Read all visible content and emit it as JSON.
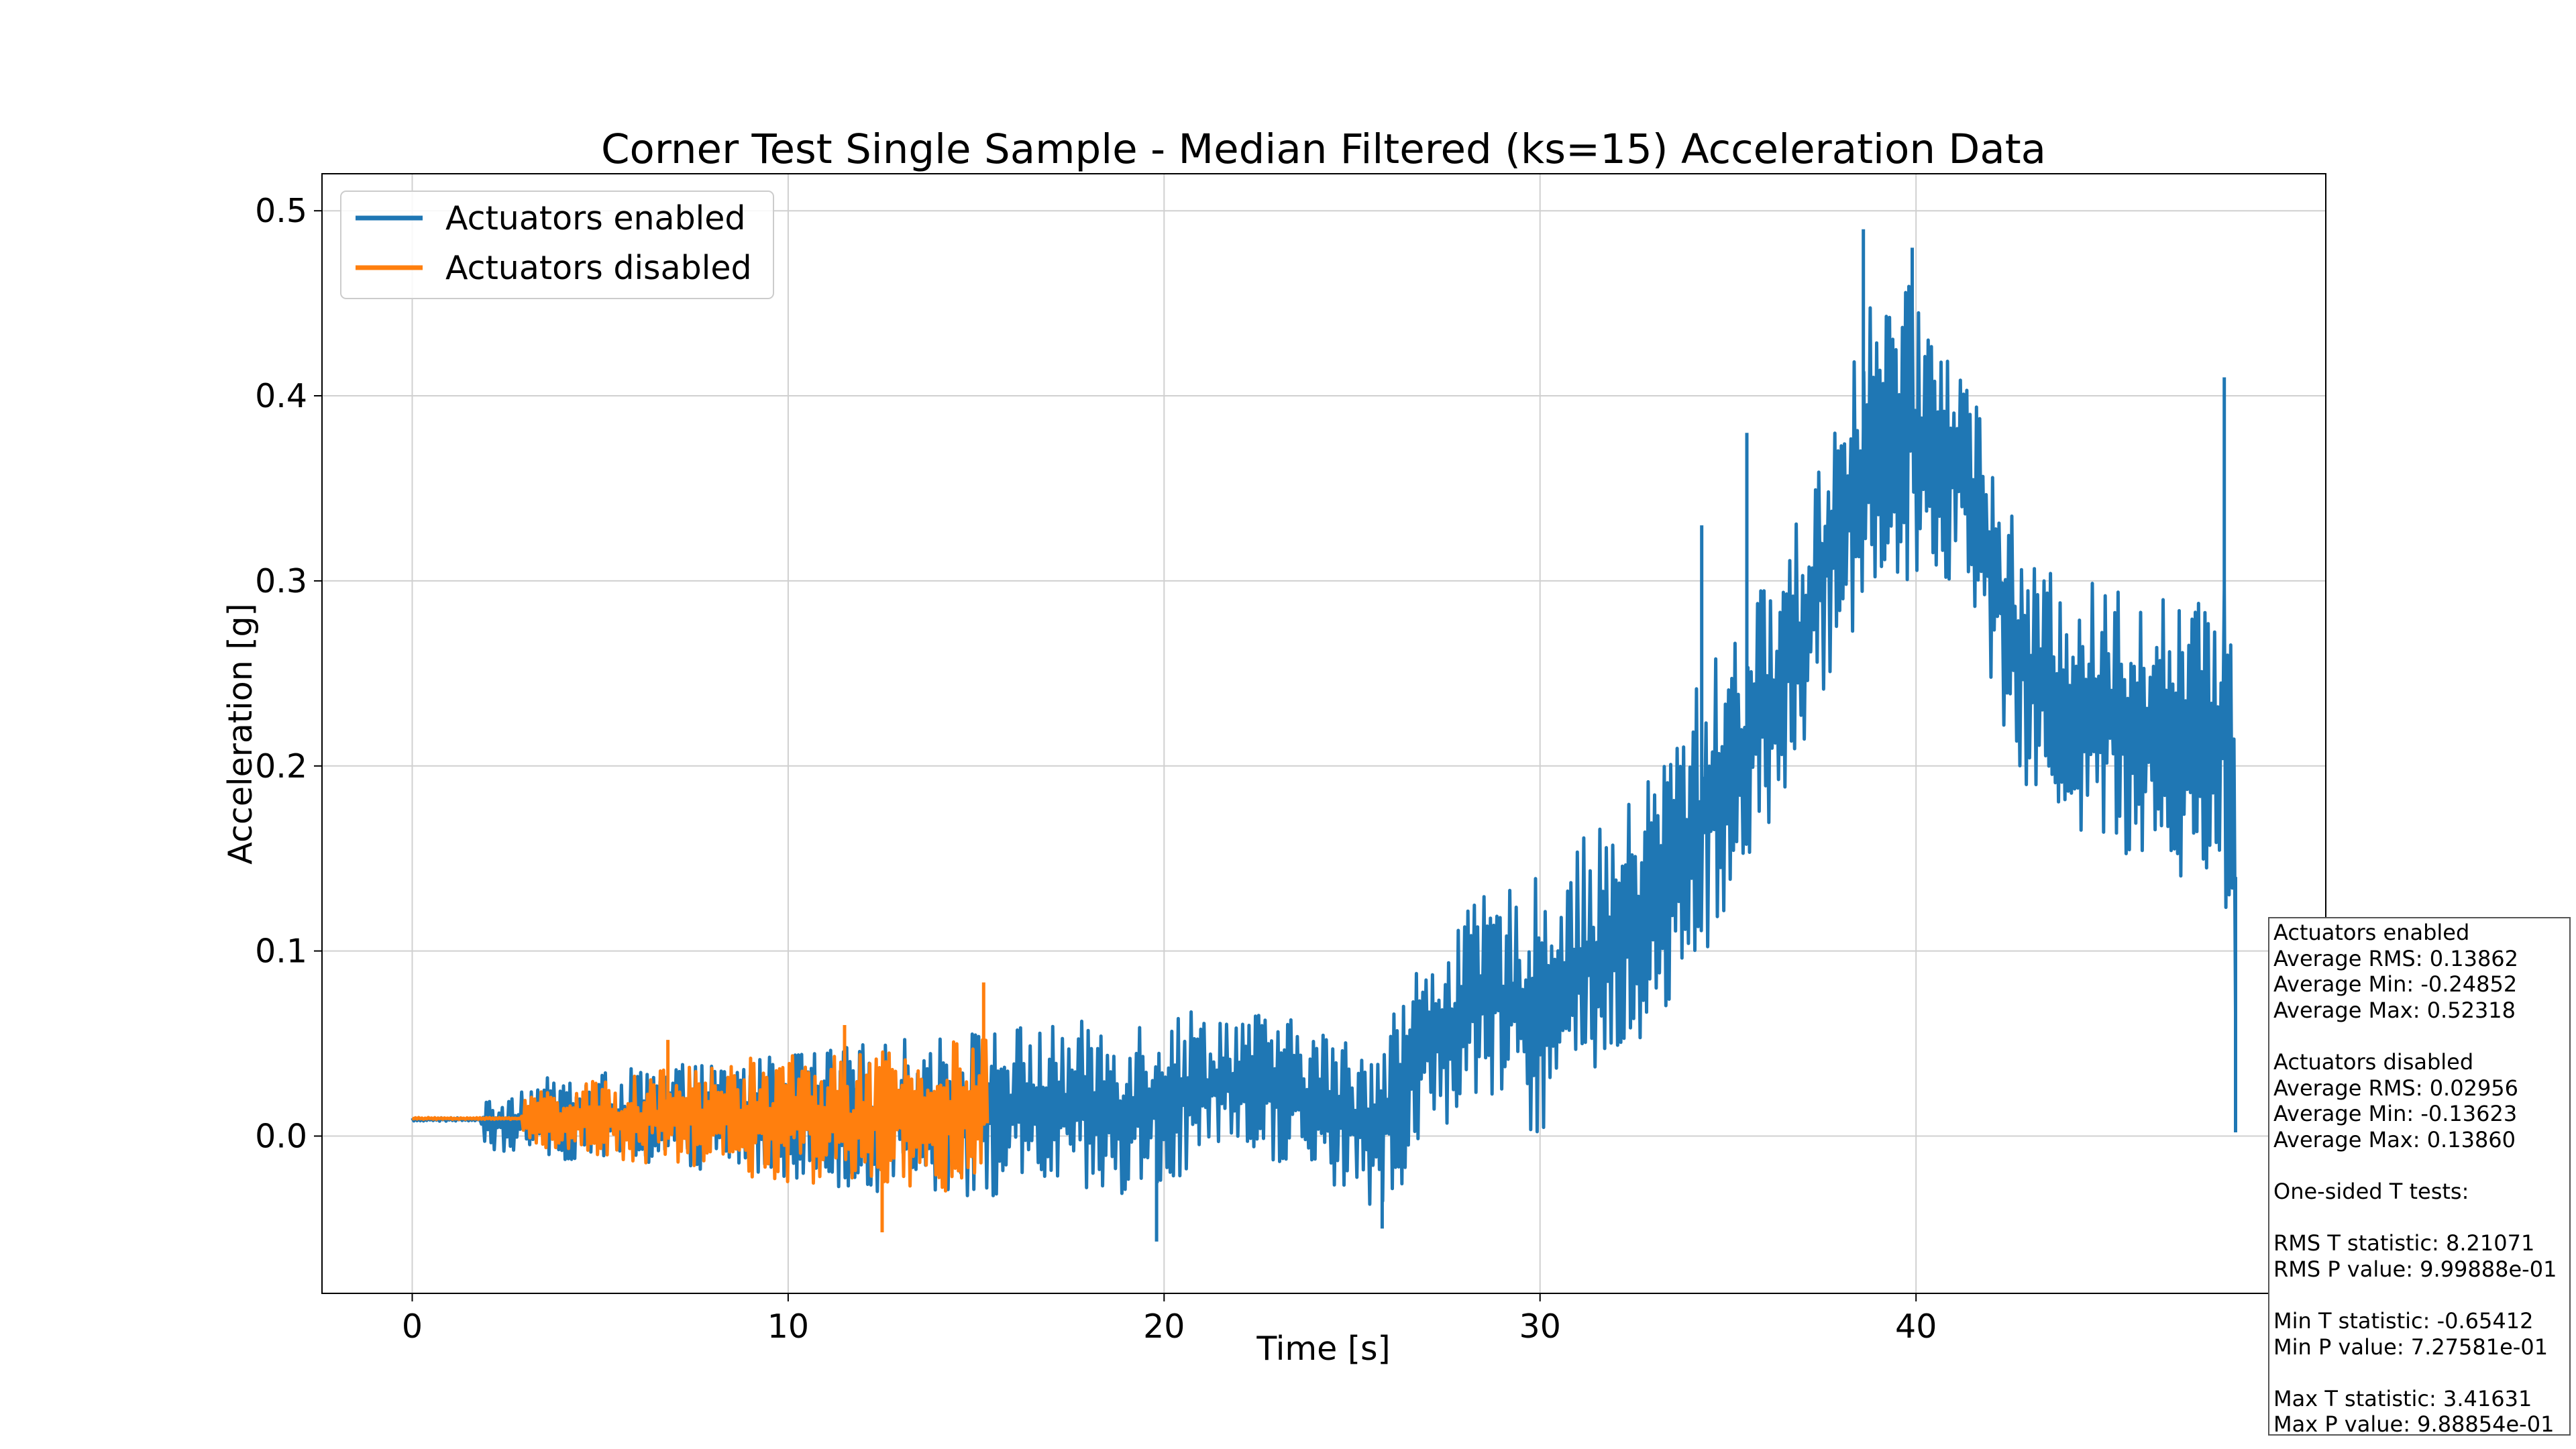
{
  "chart_data": {
    "type": "line",
    "title": "Corner Test Single Sample - Median Filtered (ks=15) Acceleration Data",
    "xlabel": "Time [s]",
    "ylabel": "Acceleration [g]",
    "xlim": [
      -2.4,
      50.9
    ],
    "ylim": [
      -0.085,
      0.52
    ],
    "xticks": [
      0,
      10,
      20,
      30,
      40
    ],
    "yticks": [
      0.0,
      0.1,
      0.2,
      0.3,
      0.4,
      0.5
    ],
    "xtick_labels": [
      "0",
      "10",
      "20",
      "30",
      "40"
    ],
    "ytick_labels": [
      "0.0",
      "0.1",
      "0.2",
      "0.3",
      "0.4",
      "0.5"
    ],
    "grid": true,
    "legend_position": "top-left",
    "series": [
      {
        "name": "Actuators enabled",
        "color": "#1f77b4",
        "x_range": [
          0,
          48.5
        ],
        "envelope": {
          "x": [
            0,
            1.8,
            2.0,
            3.0,
            5,
            8,
            10,
            12,
            14,
            15.5,
            17,
            19,
            20,
            22,
            24,
            25.2,
            26,
            27,
            28.5,
            30,
            31,
            32,
            33,
            34,
            35,
            36,
            37,
            38,
            39,
            40,
            41,
            41.5,
            42.3,
            43,
            44,
            45,
            46,
            47,
            48,
            48.3,
            48.5
          ],
          "lower": [
            0.008,
            0.008,
            -0.01,
            -0.01,
            -0.015,
            -0.02,
            -0.022,
            -0.03,
            -0.03,
            -0.035,
            -0.03,
            -0.04,
            -0.03,
            -0.01,
            -0.02,
            -0.04,
            -0.04,
            0.0,
            0.02,
            0.0,
            0.02,
            0.04,
            0.05,
            0.08,
            0.12,
            0.16,
            0.2,
            0.26,
            0.3,
            0.3,
            0.3,
            0.29,
            0.22,
            0.18,
            0.17,
            0.15,
            0.15,
            0.14,
            0.14,
            0.06,
            0.0
          ],
          "upper": [
            0.01,
            0.01,
            0.02,
            0.03,
            0.035,
            0.04,
            0.045,
            0.05,
            0.055,
            0.06,
            0.06,
            0.065,
            0.07,
            0.07,
            0.06,
            0.05,
            0.07,
            0.1,
            0.13,
            0.14,
            0.16,
            0.17,
            0.2,
            0.24,
            0.27,
            0.3,
            0.34,
            0.41,
            0.46,
            0.46,
            0.43,
            0.41,
            0.35,
            0.31,
            0.3,
            0.3,
            0.3,
            0.29,
            0.29,
            0.4,
            0.28
          ]
        },
        "spikes": [
          [
            38.6,
            0.49
          ],
          [
            39.9,
            0.48
          ],
          [
            48.2,
            0.41
          ],
          [
            48.5,
            0.002
          ],
          [
            19.8,
            -0.057
          ],
          [
            25.8,
            -0.05
          ],
          [
            34.3,
            0.33
          ],
          [
            35.5,
            0.38
          ]
        ]
      },
      {
        "name": "Actuators disabled",
        "color": "#ff7f0e",
        "x_range": [
          0,
          15.3
        ],
        "envelope": {
          "x": [
            0,
            2.9,
            3.0,
            5,
            8,
            10,
            12,
            14,
            15.3
          ],
          "lower": [
            0.009,
            0.009,
            -0.005,
            -0.012,
            -0.02,
            -0.025,
            -0.03,
            -0.03,
            -0.03
          ],
          "upper": [
            0.01,
            0.01,
            0.025,
            0.03,
            0.04,
            0.045,
            0.045,
            0.05,
            0.055
          ]
        },
        "spikes": [
          [
            15.2,
            0.083
          ],
          [
            12.5,
            -0.052
          ],
          [
            11.5,
            0.06
          ],
          [
            6.8,
            0.052
          ]
        ]
      }
    ]
  },
  "stats_box": {
    "lines": [
      "Actuators enabled",
      "Average RMS: 0.13862",
      "Average Min: -0.24852",
      "Average Max: 0.52318",
      "",
      "Actuators disabled",
      "Average RMS: 0.02956",
      "Average Min: -0.13623",
      "Average Max: 0.13860",
      "",
      "One-sided T tests:",
      "",
      "RMS T statistic: 8.21071",
      "RMS P value: 9.99888e-01",
      "",
      "Min T statistic: -0.65412",
      "Min P value: 7.27581e-01",
      "",
      "Max T statistic: 3.41631",
      "Max P value: 9.88854e-01"
    ]
  }
}
